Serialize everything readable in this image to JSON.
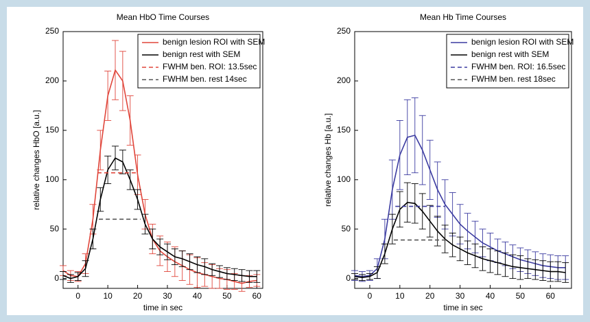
{
  "chart_data": [
    {
      "type": "line",
      "title": "Mean HbO Time Courses",
      "x_label": "time in sec",
      "y_label": "relative changes HbO [a.u.]",
      "xlim": [
        -5,
        62
      ],
      "ylim": [
        -10,
        250
      ],
      "xticks": [
        0,
        10,
        20,
        30,
        40,
        50,
        60
      ],
      "yticks": [
        0,
        50,
        100,
        150,
        200,
        250
      ],
      "legend": "upper right",
      "x": [
        -5,
        -2.5,
        0,
        2.5,
        5,
        7.5,
        10,
        12.5,
        15,
        17.5,
        20,
        22.5,
        25,
        27.5,
        30,
        32.5,
        35,
        37.5,
        40,
        42.5,
        45,
        47.5,
        50,
        52.5,
        55,
        57.5,
        60
      ],
      "series": [
        {
          "name": "benign lesion ROI with SEM",
          "color": "#e0453a",
          "dash": false,
          "values": [
            8,
            3,
            2,
            15,
            60,
            130,
            185,
            211,
            200,
            160,
            105,
            65,
            40,
            28,
            22,
            17,
            13,
            9,
            6,
            4,
            2,
            0,
            -1,
            -3,
            -5,
            -3,
            -2
          ],
          "errors": [
            5,
            5,
            5,
            10,
            15,
            20,
            25,
            30,
            30,
            25,
            20,
            15,
            15,
            15,
            15,
            15,
            15,
            15,
            15,
            12,
            12,
            10,
            10,
            8,
            8,
            6,
            6
          ]
        },
        {
          "name": "benign rest with SEM",
          "color": "#000000",
          "dash": false,
          "values": [
            3,
            0,
            2,
            10,
            40,
            80,
            110,
            122,
            118,
            100,
            80,
            55,
            40,
            32,
            27,
            22,
            20,
            17,
            14,
            12,
            9,
            7,
            5,
            4,
            3,
            2,
            2
          ],
          "errors": [
            4,
            4,
            4,
            8,
            10,
            12,
            14,
            12,
            12,
            10,
            10,
            10,
            10,
            8,
            8,
            8,
            8,
            8,
            8,
            8,
            6,
            6,
            6,
            6,
            6,
            6,
            6
          ]
        },
        {
          "name": "FWHM ben. ROI: 13.5sec",
          "color": "#e0453a",
          "dash": true,
          "x": [
            6.5,
            20
          ],
          "values": [
            107,
            107
          ]
        },
        {
          "name": "FWHM ben. rest 14sec",
          "color": "#555555",
          "dash": true,
          "x": [
            7,
            21
          ],
          "values": [
            60,
            60
          ]
        }
      ]
    },
    {
      "type": "line",
      "title": "Mean Hb Time Courses",
      "x_label": "time in sec",
      "y_label": "relative changes Hb [a.u.]",
      "xlim": [
        -5,
        67
      ],
      "ylim": [
        -10,
        250
      ],
      "xticks": [
        0,
        10,
        20,
        30,
        40,
        50,
        60
      ],
      "yticks": [
        0,
        50,
        100,
        150,
        200,
        250
      ],
      "legend": "upper right",
      "x": [
        -5,
        -2.5,
        0,
        2.5,
        5,
        7.5,
        10,
        12.5,
        15,
        17.5,
        20,
        22.5,
        25,
        27.5,
        30,
        32.5,
        35,
        37.5,
        40,
        42.5,
        45,
        47.5,
        50,
        52.5,
        55,
        57.5,
        60,
        62.5,
        65
      ],
      "series": [
        {
          "name": "benign lesion ROI with SEM",
          "color": "#3a3aa0",
          "dash": false,
          "values": [
            3,
            2,
            3,
            10,
            40,
            90,
            125,
            143,
            145,
            130,
            110,
            90,
            75,
            65,
            55,
            48,
            42,
            36,
            32,
            28,
            25,
            22,
            19,
            17,
            15,
            13,
            12,
            11,
            11
          ],
          "errors": [
            5,
            5,
            5,
            10,
            20,
            30,
            35,
            38,
            38,
            35,
            30,
            28,
            25,
            22,
            20,
            18,
            16,
            14,
            14,
            12,
            12,
            12,
            12,
            12,
            12,
            12,
            12,
            12,
            12
          ]
        },
        {
          "name": "benign rest with SEM",
          "color": "#000000",
          "dash": false,
          "values": [
            2,
            1,
            2,
            6,
            25,
            50,
            70,
            77,
            76,
            68,
            58,
            48,
            40,
            34,
            30,
            26,
            23,
            20,
            18,
            16,
            14,
            12,
            11,
            10,
            9,
            8,
            7,
            7,
            6
          ],
          "errors": [
            3,
            3,
            3,
            6,
            10,
            15,
            18,
            20,
            20,
            18,
            16,
            15,
            14,
            12,
            12,
            12,
            12,
            12,
            12,
            12,
            12,
            12,
            12,
            10,
            10,
            10,
            10,
            10,
            10
          ]
        },
        {
          "name": "FWHM ben. ROI: 16.5sec",
          "color": "#3a3aa0",
          "dash": true,
          "x": [
            8.5,
            25
          ],
          "values": [
            73,
            73
          ]
        },
        {
          "name": "FWHM ben. rest 18sec",
          "color": "#555555",
          "dash": true,
          "x": [
            8,
            26
          ],
          "values": [
            39,
            39
          ]
        }
      ]
    }
  ]
}
